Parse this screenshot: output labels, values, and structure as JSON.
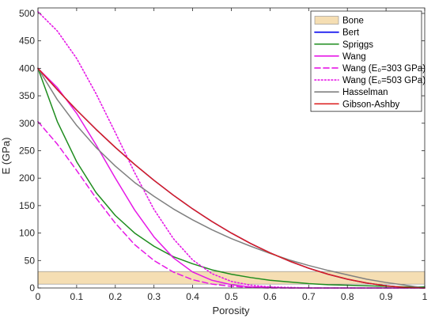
{
  "chart_data": {
    "type": "line",
    "title": "",
    "xlabel": "Porosity",
    "ylabel": "E (GPa)",
    "xlim": [
      0,
      1
    ],
    "ylim": [
      0,
      510
    ],
    "xticks": [
      0,
      0.1,
      0.2,
      0.3,
      0.4,
      0.5,
      0.6,
      0.7,
      0.8,
      0.9,
      1
    ],
    "xtick_labels": [
      "0",
      "0.1",
      "0.2",
      "0.3",
      "0.4",
      "0.5",
      "0.6",
      "0.7",
      "0.8",
      "0.9",
      "1"
    ],
    "yticks": [
      0,
      50,
      100,
      150,
      200,
      250,
      300,
      350,
      400,
      450,
      500
    ],
    "ytick_labels": [
      "0",
      "50",
      "100",
      "150",
      "200",
      "250",
      "300",
      "350",
      "400",
      "450",
      "500"
    ],
    "grid": false,
    "legend_position": "top-right",
    "band": {
      "name": "Bone",
      "y_range": [
        7,
        30
      ],
      "color": "#f5deb3"
    },
    "series": [
      {
        "name": "Bert",
        "color": "#0000ee",
        "dash": "solid",
        "x": [
          0,
          0.05,
          0.1,
          0.15,
          0.2,
          0.25,
          0.3,
          0.35,
          0.4,
          0.45,
          0.5,
          0.55,
          0.6,
          0.65,
          0.7,
          0.75,
          0.8,
          0.85,
          0.9,
          0.95,
          1
        ],
        "y": [
          400,
          361,
          324,
          289,
          256,
          225,
          196,
          169,
          144,
          121,
          100,
          81,
          64,
          49,
          36,
          25,
          16,
          9,
          4,
          1,
          0
        ]
      },
      {
        "name": "Spriggs",
        "color": "#1e8c1e",
        "dash": "solid",
        "x": [
          0,
          0.05,
          0.1,
          0.15,
          0.2,
          0.25,
          0.3,
          0.35,
          0.4,
          0.45,
          0.5,
          0.55,
          0.6,
          0.65,
          0.7,
          0.75,
          0.8,
          0.85,
          0.9,
          0.95,
          1
        ],
        "y": [
          400,
          303,
          230,
          174,
          132,
          100,
          76,
          57,
          44,
          33,
          25,
          19,
          14,
          11,
          8,
          6,
          5,
          4,
          3,
          2,
          2
        ]
      },
      {
        "name": "Wang",
        "color": "#e619e6",
        "dash": "solid",
        "x": [
          0,
          0.05,
          0.1,
          0.15,
          0.2,
          0.25,
          0.3,
          0.35,
          0.4,
          0.45,
          0.5,
          0.55,
          0.6,
          0.65,
          0.7,
          0.75,
          0.8,
          0.85,
          0.9,
          0.95,
          1
        ],
        "y": [
          400,
          365,
          318,
          261,
          200,
          142,
          93,
          55,
          29,
          14,
          6,
          2,
          1,
          0,
          0,
          0,
          0,
          0,
          0,
          0,
          0
        ]
      },
      {
        "name": "Wang (E₀=303 GPa)",
        "color": "#e619e6",
        "dash": "dashed",
        "x": [
          0,
          0.05,
          0.1,
          0.15,
          0.2,
          0.25,
          0.3,
          0.35,
          0.4,
          0.45,
          0.5,
          0.55,
          0.6,
          0.65,
          0.7,
          0.75,
          0.8,
          0.85,
          0.9,
          0.95,
          1
        ],
        "y": [
          303,
          262,
          214,
          164,
          118,
          79,
          50,
          29,
          15,
          7,
          3,
          1,
          0,
          0,
          0,
          0,
          0,
          0,
          0,
          0,
          0
        ]
      },
      {
        "name": "Wang (E₀=503 GPa)",
        "color": "#e619e6",
        "dash": "dotted",
        "x": [
          0,
          0.05,
          0.1,
          0.15,
          0.2,
          0.25,
          0.3,
          0.35,
          0.4,
          0.45,
          0.5,
          0.55,
          0.6,
          0.65,
          0.7,
          0.75,
          0.8,
          0.85,
          0.9,
          0.95,
          1
        ],
        "y": [
          503,
          468,
          418,
          354,
          283,
          210,
          143,
          90,
          51,
          26,
          12,
          5,
          2,
          1,
          0,
          0,
          0,
          0,
          0,
          0,
          0
        ]
      },
      {
        "name": "Hasselman",
        "color": "#808080",
        "dash": "solid",
        "x": [
          0,
          0.05,
          0.1,
          0.15,
          0.2,
          0.25,
          0.3,
          0.35,
          0.4,
          0.45,
          0.5,
          0.55,
          0.6,
          0.65,
          0.7,
          0.75,
          0.8,
          0.85,
          0.9,
          0.95,
          1
        ],
        "y": [
          400,
          343,
          296,
          256,
          222,
          192,
          167,
          144,
          124,
          106,
          90,
          76,
          63,
          51,
          41,
          32,
          24,
          16,
          10,
          5,
          0
        ]
      },
      {
        "name": "Gibson-Ashby",
        "color": "#dc1e1e",
        "dash": "solid",
        "x": [
          0,
          0.05,
          0.1,
          0.15,
          0.2,
          0.25,
          0.3,
          0.35,
          0.4,
          0.45,
          0.5,
          0.55,
          0.6,
          0.65,
          0.7,
          0.75,
          0.8,
          0.85,
          0.9,
          0.95,
          1
        ],
        "y": [
          400,
          361,
          324,
          289,
          256,
          225,
          196,
          169,
          144,
          121,
          100,
          81,
          64,
          49,
          36,
          25,
          16,
          9,
          4,
          1,
          0
        ]
      }
    ]
  }
}
